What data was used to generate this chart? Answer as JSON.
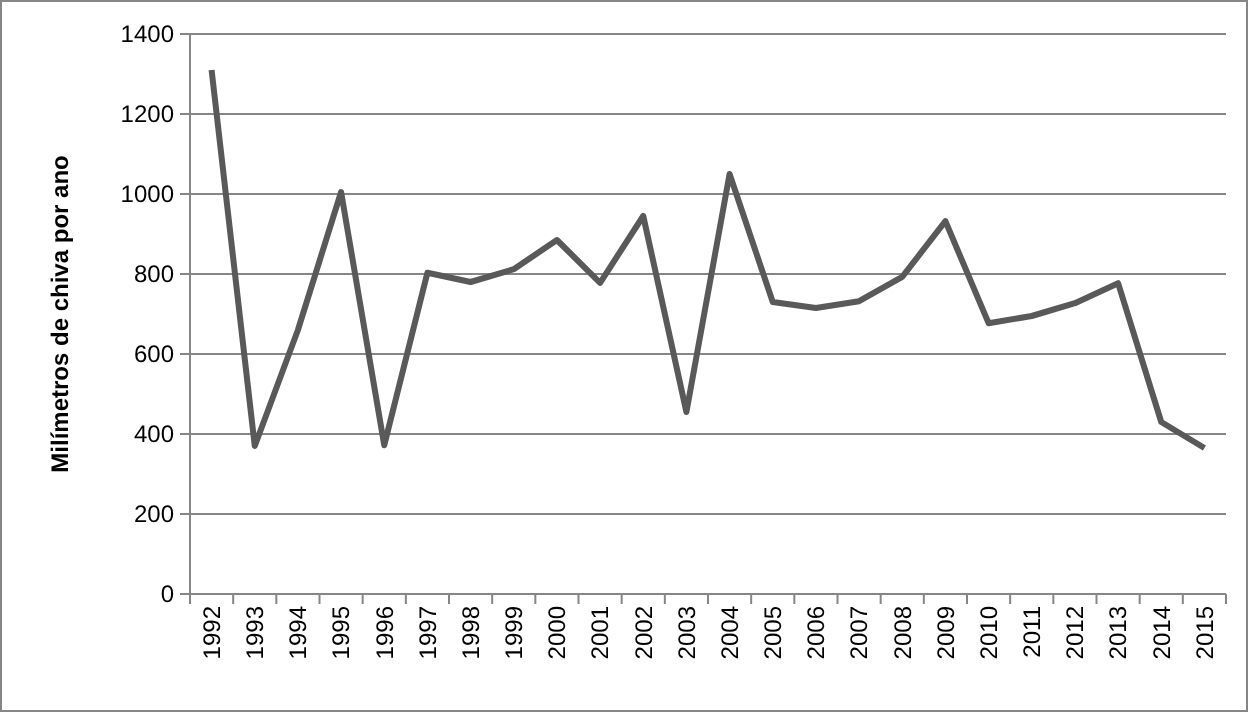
{
  "chart_data": {
    "type": "line",
    "ylabel": "Milímetros de chiva por ano",
    "categories": [
      "1992",
      "1993",
      "1994",
      "1995",
      "1996",
      "1997",
      "1998",
      "1999",
      "2000",
      "2001",
      "2002",
      "2003",
      "2004",
      "2005",
      "2006",
      "2007",
      "2008",
      "2009",
      "2010",
      "2011",
      "2012",
      "2013",
      "2014",
      "2015"
    ],
    "series": [
      {
        "color": "#595959",
        "values": [
          1310,
          370,
          660,
          1005,
          372,
          803,
          780,
          812,
          885,
          778,
          945,
          455,
          1050,
          730,
          715,
          732,
          793,
          932,
          677,
          695,
          727,
          777,
          430,
          365
        ]
      }
    ],
    "ylim": [
      0,
      1400
    ],
    "yticks": [
      0,
      200,
      400,
      600,
      800,
      1000,
      1200,
      1400
    ],
    "grid": "y",
    "marker": "none",
    "line_style": "solid"
  }
}
